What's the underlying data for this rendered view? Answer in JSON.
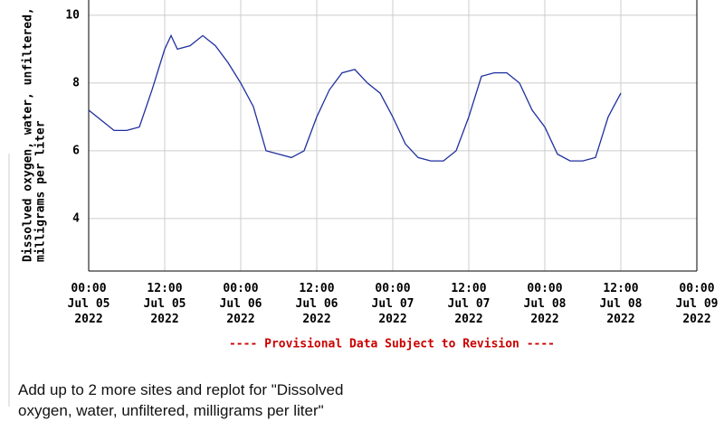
{
  "chart_data": {
    "type": "line",
    "y_label": [
      "Dissolved oxygen, water, unfiltered,",
      "milligrams per liter"
    ],
    "x": [
      "2022-07-05T00:00",
      "2022-07-05T04:00",
      "2022-07-05T06:00",
      "2022-07-05T08:00",
      "2022-07-05T10:00",
      "2022-07-05T12:00",
      "2022-07-05T13:00",
      "2022-07-05T14:00",
      "2022-07-05T16:00",
      "2022-07-05T18:00",
      "2022-07-05T20:00",
      "2022-07-05T22:00",
      "2022-07-06T00:00",
      "2022-07-06T02:00",
      "2022-07-06T04:00",
      "2022-07-06T06:00",
      "2022-07-06T08:00",
      "2022-07-06T10:00",
      "2022-07-06T12:00",
      "2022-07-06T14:00",
      "2022-07-06T16:00",
      "2022-07-06T18:00",
      "2022-07-06T20:00",
      "2022-07-06T22:00",
      "2022-07-07T00:00",
      "2022-07-07T02:00",
      "2022-07-07T04:00",
      "2022-07-07T06:00",
      "2022-07-07T08:00",
      "2022-07-07T10:00",
      "2022-07-07T12:00",
      "2022-07-07T14:00",
      "2022-07-07T16:00",
      "2022-07-07T18:00",
      "2022-07-07T20:00",
      "2022-07-07T22:00",
      "2022-07-08T00:00",
      "2022-07-08T02:00",
      "2022-07-08T04:00",
      "2022-07-08T06:00",
      "2022-07-08T08:00",
      "2022-07-08T10:00",
      "2022-07-08T12:00"
    ],
    "series": [
      {
        "name": "Dissolved oxygen",
        "color": "#1f2f9f",
        "values": [
          7.2,
          6.6,
          6.6,
          6.7,
          7.8,
          9.0,
          9.4,
          9.0,
          9.1,
          9.4,
          9.1,
          8.6,
          8.0,
          7.3,
          6.0,
          5.9,
          5.8,
          6.0,
          7.0,
          7.8,
          8.3,
          8.4,
          8.0,
          7.7,
          7.0,
          6.2,
          5.8,
          5.7,
          5.7,
          6.0,
          7.0,
          8.2,
          8.3,
          8.3,
          8.0,
          7.2,
          6.7,
          5.9,
          5.7,
          5.7,
          5.8,
          7.0,
          7.7
        ]
      }
    ],
    "ylim": [
      2.45,
      10.45
    ],
    "yticks": [
      4,
      6,
      8,
      10
    ],
    "xlim": [
      "2022-07-05T00:00",
      "2022-07-09T00:00"
    ],
    "xticks": [
      {
        "value": "2022-07-05T00:00",
        "label": "00:00\nJul 05\n2022"
      },
      {
        "value": "2022-07-05T12:00",
        "label": "12:00\nJul 05\n2022"
      },
      {
        "value": "2022-07-06T00:00",
        "label": "00:00\nJul 06\n2022"
      },
      {
        "value": "2022-07-06T12:00",
        "label": "12:00\nJul 06\n2022"
      },
      {
        "value": "2022-07-07T00:00",
        "label": "00:00\nJul 07\n2022"
      },
      {
        "value": "2022-07-07T12:00",
        "label": "12:00\nJul 07\n2022"
      },
      {
        "value": "2022-07-08T00:00",
        "label": "00:00\nJul 08\n2022"
      },
      {
        "value": "2022-07-08T12:00",
        "label": "12:00\nJul 08\n2022"
      },
      {
        "value": "2022-07-09T00:00",
        "label": "00:00\nJul 09\n2022"
      }
    ],
    "grid": true
  },
  "notice": "---- Provisional Data Subject to Revision ----",
  "footer_text": "Add up to 2 more sites and replot for \"Dissolved oxygen, water, unfiltered, milligrams per liter\""
}
